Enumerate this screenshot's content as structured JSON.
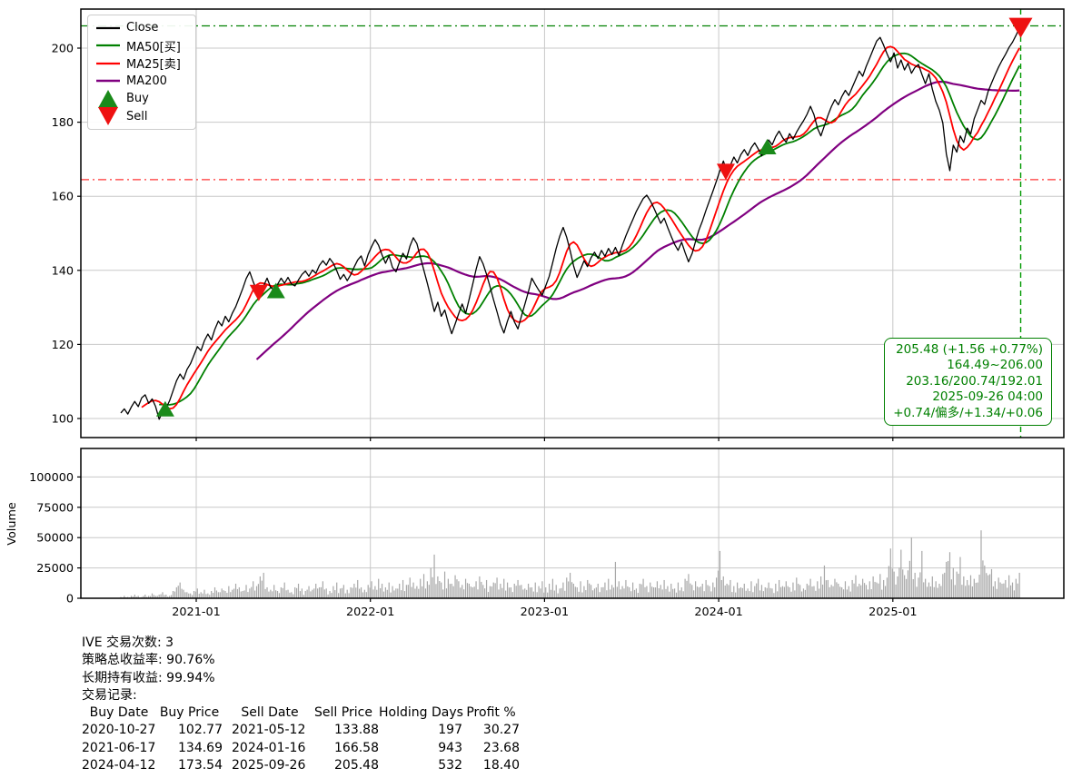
{
  "colors": {
    "close": "#000000",
    "ma50": "#008000",
    "ma25": "#ff0000",
    "ma200": "#800080",
    "buy": "#1a8a1a",
    "sell": "#ee1111",
    "grid": "#c8c8c8",
    "volume_bar": "#a8a8a8",
    "annotation": "#008000",
    "axis": "#000000"
  },
  "legend": {
    "items": [
      {
        "label": "Close",
        "swatch": "line-black"
      },
      {
        "label": "MA50[买]",
        "swatch": "line-green"
      },
      {
        "label": "MA25[卖]",
        "swatch": "line-red"
      },
      {
        "label": "MA200",
        "swatch": "line-purple"
      },
      {
        "label": "Buy",
        "swatch": "triangle-up-green"
      },
      {
        "label": "Sell",
        "swatch": "triangle-down-red"
      }
    ]
  },
  "annotation_box": {
    "lines": [
      "205.48 (+1.56 +0.77%)",
      "164.49~206.00",
      "203.16/200.74/192.01",
      "2025-09-26 04:00",
      "+0.74/偏多/+1.34/+0.06"
    ]
  },
  "stats": {
    "ticker_line": "IVE 交易次数: 3",
    "strategy_line": "策略总收益率: 90.76%",
    "hold_line": "长期持有收益: 99.94%",
    "records_line": "交易记录:",
    "table": {
      "headers": [
        "Buy Date",
        "Buy Price",
        "Sell Date",
        "Sell Price",
        "Holding Days",
        "Profit %"
      ],
      "rows": [
        [
          "2020-10-27",
          "102.77",
          "2021-05-12",
          "133.88",
          "197",
          "30.27"
        ],
        [
          "2021-06-17",
          "134.69",
          "2024-01-16",
          "166.58",
          "943",
          "23.68"
        ],
        [
          "2024-04-12",
          "173.54",
          "2025-09-26",
          "205.48",
          "532",
          "18.40"
        ]
      ]
    }
  },
  "chart_data": {
    "type": "line",
    "title": "",
    "x_axis": {
      "ticks": [
        {
          "t": 2021.0,
          "label": "2021-01"
        },
        {
          "t": 2022.0,
          "label": "2022-01"
        },
        {
          "t": 2023.0,
          "label": "2023-01"
        },
        {
          "t": 2024.0,
          "label": "2024-01"
        },
        {
          "t": 2025.0,
          "label": "2025-01"
        }
      ],
      "range": [
        2020.34,
        2025.98
      ]
    },
    "price_axis": {
      "ticks": [
        100,
        120,
        140,
        160,
        180,
        200
      ],
      "range": [
        94.8,
        210.5
      ]
    },
    "volume_axis": {
      "label": "Volume",
      "ticks": [
        0,
        25000,
        50000,
        75000,
        100000
      ],
      "range": [
        0,
        123000
      ]
    },
    "reference_lines": {
      "high_line": {
        "value": 206.0,
        "color": "#008000",
        "style": "dashdot"
      },
      "low_line": {
        "value": 164.49,
        "color": "#ff3333",
        "style": "dashdot"
      },
      "current_date_line": {
        "t": 2025.734,
        "color": "#009900",
        "style": "dashed"
      }
    },
    "markers": [
      {
        "action": "buy",
        "date": "2020-10-27",
        "t": 2020.822,
        "price": 102.77
      },
      {
        "action": "sell",
        "date": "2021-05-12",
        "t": 2021.359,
        "price": 133.88
      },
      {
        "action": "buy",
        "date": "2021-06-17",
        "t": 2021.458,
        "price": 134.69
      },
      {
        "action": "sell",
        "date": "2024-01-16",
        "t": 2024.041,
        "price": 166.58
      },
      {
        "action": "buy",
        "date": "2024-04-12",
        "t": 2024.279,
        "price": 173.54
      },
      {
        "action": "sell",
        "date": "2025-09-26",
        "t": 2025.734,
        "price": 205.48
      }
    ],
    "series": {
      "close": {
        "name": "Close",
        "t0": 2020.567,
        "dt": 0.02,
        "values": [
          101.5,
          102.6,
          101.2,
          103.1,
          104.6,
          103.2,
          105.6,
          106.4,
          104.1,
          105.3,
          103.2,
          99.8,
          101.9,
          102.8,
          104.8,
          107.5,
          110.2,
          112.0,
          110.6,
          113.2,
          114.8,
          117.1,
          119.4,
          118.3,
          121.0,
          122.8,
          121.2,
          124.1,
          126.3,
          125.0,
          127.6,
          126.1,
          128.4,
          130.2,
          132.6,
          135.1,
          137.8,
          139.6,
          136.9,
          134.6,
          133.9,
          135.8,
          137.9,
          135.4,
          134.7,
          136.2,
          137.9,
          136.5,
          138.1,
          136.3,
          135.8,
          137.4,
          138.9,
          139.8,
          138.4,
          140.1,
          139.2,
          141.3,
          142.6,
          141.4,
          143.2,
          141.9,
          139.9,
          137.6,
          138.9,
          137.2,
          138.8,
          140.9,
          142.8,
          143.9,
          141.2,
          144.3,
          146.4,
          148.3,
          146.8,
          144.2,
          141.9,
          144.0,
          140.8,
          139.6,
          142.2,
          144.6,
          143.1,
          146.5,
          148.8,
          147.2,
          143.6,
          140.0,
          136.5,
          132.8,
          128.9,
          131.4,
          127.6,
          129.3,
          125.8,
          122.9,
          125.6,
          128.3,
          130.9,
          128.4,
          132.2,
          136.1,
          140.3,
          143.7,
          141.8,
          138.9,
          135.6,
          132.1,
          128.8,
          125.4,
          123.1,
          126.3,
          128.9,
          126.1,
          124.2,
          127.6,
          130.8,
          134.2,
          137.9,
          136.2,
          134.6,
          133.3,
          135.8,
          138.4,
          142.1,
          145.9,
          149.2,
          151.6,
          149.0,
          145.3,
          141.2,
          138.1,
          140.3,
          142.6,
          141.0,
          143.4,
          144.9,
          143.2,
          145.4,
          143.8,
          145.9,
          144.3,
          146.2,
          144.0,
          146.8,
          149.3,
          151.6,
          153.7,
          155.9,
          157.7,
          159.4,
          160.3,
          158.8,
          156.9,
          154.8,
          152.7,
          154.1,
          151.6,
          149.2,
          147.0,
          145.4,
          147.6,
          144.8,
          142.3,
          144.5,
          147.8,
          150.9,
          153.4,
          156.2,
          158.8,
          161.4,
          164.1,
          166.9,
          169.5,
          166.6,
          168.3,
          170.6,
          169.0,
          171.2,
          172.6,
          171.0,
          173.1,
          174.4,
          172.8,
          170.9,
          173.5,
          175.2,
          173.9,
          176.1,
          177.6,
          175.8,
          174.6,
          176.9,
          175.4,
          177.3,
          178.9,
          180.4,
          182.1,
          184.3,
          182.0,
          178.4,
          176.3,
          179.1,
          181.8,
          184.2,
          186.1,
          184.7,
          186.9,
          188.6,
          187.2,
          189.4,
          191.6,
          193.8,
          192.4,
          195.1,
          197.3,
          199.6,
          201.9,
          202.9,
          200.8,
          198.4,
          196.3,
          198.7,
          194.6,
          196.8,
          194.1,
          195.9,
          193.2,
          194.8,
          195.6,
          192.9,
          190.4,
          193.1,
          188.9,
          185.6,
          183.2,
          179.8,
          171.4,
          166.9,
          173.8,
          171.9,
          176.3,
          174.5,
          178.4,
          176.8,
          180.9,
          183.4,
          185.9,
          184.8,
          188.3,
          190.6,
          192.8,
          194.9,
          196.7,
          198.3,
          200.2,
          201.6,
          203.4,
          205.5
        ]
      },
      "ma25": {
        "name": "MA25[卖]",
        "derived_from": "close",
        "window_days": 25
      },
      "ma50": {
        "name": "MA50[买]",
        "derived_from": "close",
        "window_days": 50
      },
      "ma200": {
        "name": "MA200",
        "derived_from": "close",
        "window_days": 200
      },
      "volume": {
        "name": "Volume",
        "t0": 2020.567,
        "dt": 0.02,
        "unit": 1000,
        "values": [
          1,
          2,
          1,
          2,
          3,
          2,
          1,
          3,
          2,
          4,
          2,
          3,
          5,
          3,
          2,
          6,
          9,
          13,
          7,
          5,
          4,
          6,
          8,
          5,
          7,
          4,
          6,
          9,
          5,
          8,
          6,
          10,
          7,
          12,
          9,
          6,
          11,
          8,
          14,
          10,
          18,
          21,
          9,
          7,
          11,
          6,
          9,
          13,
          7,
          5,
          9,
          12,
          8,
          6,
          10,
          7,
          12,
          9,
          14,
          8,
          6,
          10,
          13,
          8,
          11,
          7,
          9,
          12,
          15,
          9,
          7,
          11,
          14,
          10,
          16,
          12,
          9,
          13,
          10,
          8,
          12,
          15,
          11,
          17,
          13,
          10,
          16,
          20,
          14,
          25,
          36,
          18,
          13,
          22,
          16,
          12,
          19,
          14,
          11,
          16,
          12,
          9,
          14,
          18,
          11,
          15,
          10,
          13,
          17,
          12,
          16,
          13,
          9,
          12,
          15,
          11,
          8,
          12,
          9,
          13,
          10,
          14,
          9,
          12,
          16,
          11,
          8,
          13,
          17,
          21,
          12,
          9,
          14,
          10,
          15,
          11,
          8,
          12,
          9,
          13,
          16,
          11,
          30,
          14,
          10,
          15,
          9,
          13,
          8,
          12,
          16,
          10,
          13,
          9,
          14,
          11,
          15,
          10,
          12,
          8,
          13,
          9,
          16,
          20,
          11,
          14,
          9,
          12,
          15,
          10,
          13,
          17,
          39,
          18,
          12,
          15,
          10,
          13,
          9,
          12,
          8,
          14,
          10,
          16,
          11,
          9,
          13,
          8,
          12,
          15,
          10,
          14,
          9,
          13,
          17,
          11,
          8,
          12,
          16,
          10,
          14,
          18,
          27,
          15,
          11,
          16,
          12,
          9,
          14,
          10,
          15,
          19,
          12,
          16,
          11,
          14,
          18,
          13,
          20,
          15,
          17,
          41,
          22,
          18,
          40,
          19,
          23,
          50,
          21,
          17,
          39,
          16,
          13,
          18,
          14,
          12,
          20,
          30,
          38,
          25,
          22,
          34,
          18,
          15,
          19,
          16,
          13,
          56,
          27,
          19,
          24,
          14,
          17,
          12,
          15,
          19,
          13,
          16,
          21
        ]
      }
    }
  }
}
